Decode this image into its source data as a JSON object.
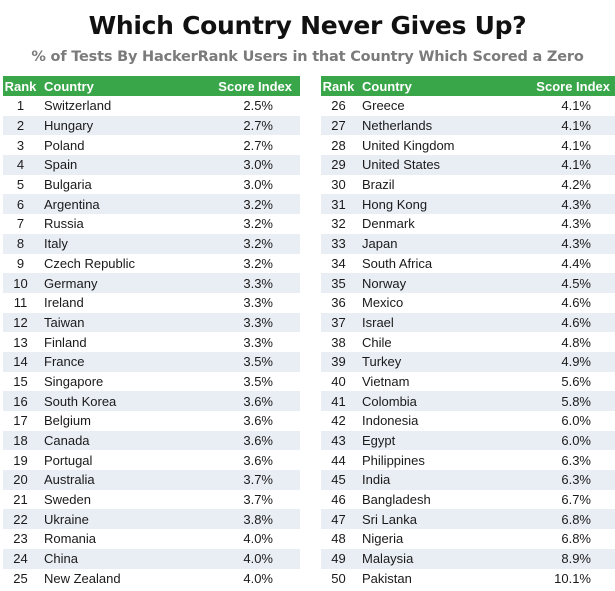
{
  "title": "Which Country Never Gives Up?",
  "subtitle": "% of Tests By HackerRank Users in that Country Which Scored a Zero",
  "columns": {
    "rank": "Rank",
    "country": "Country",
    "score": "Score Index"
  },
  "rows": [
    {
      "rank": "1",
      "country": "Switzerland",
      "score": "2.5%"
    },
    {
      "rank": "2",
      "country": "Hungary",
      "score": "2.7%"
    },
    {
      "rank": "3",
      "country": "Poland",
      "score": "2.7%"
    },
    {
      "rank": "4",
      "country": "Spain",
      "score": "3.0%"
    },
    {
      "rank": "5",
      "country": "Bulgaria",
      "score": "3.0%"
    },
    {
      "rank": "6",
      "country": "Argentina",
      "score": "3.2%"
    },
    {
      "rank": "7",
      "country": "Russia",
      "score": "3.2%"
    },
    {
      "rank": "8",
      "country": "Italy",
      "score": "3.2%"
    },
    {
      "rank": "9",
      "country": "Czech Republic",
      "score": "3.2%"
    },
    {
      "rank": "10",
      "country": "Germany",
      "score": "3.3%"
    },
    {
      "rank": "11",
      "country": "Ireland",
      "score": "3.3%"
    },
    {
      "rank": "12",
      "country": "Taiwan",
      "score": "3.3%"
    },
    {
      "rank": "13",
      "country": "Finland",
      "score": "3.3%"
    },
    {
      "rank": "14",
      "country": "France",
      "score": "3.5%"
    },
    {
      "rank": "15",
      "country": "Singapore",
      "score": "3.5%"
    },
    {
      "rank": "16",
      "country": "South Korea",
      "score": "3.6%"
    },
    {
      "rank": "17",
      "country": "Belgium",
      "score": "3.6%"
    },
    {
      "rank": "18",
      "country": "Canada",
      "score": "3.6%"
    },
    {
      "rank": "19",
      "country": "Portugal",
      "score": "3.6%"
    },
    {
      "rank": "20",
      "country": "Australia",
      "score": "3.7%"
    },
    {
      "rank": "21",
      "country": "Sweden",
      "score": "3.7%"
    },
    {
      "rank": "22",
      "country": "Ukraine",
      "score": "3.8%"
    },
    {
      "rank": "23",
      "country": "Romania",
      "score": "4.0%"
    },
    {
      "rank": "24",
      "country": "China",
      "score": "4.0%"
    },
    {
      "rank": "25",
      "country": "New Zealand",
      "score": "4.0%"
    },
    {
      "rank": "26",
      "country": "Greece",
      "score": "4.1%"
    },
    {
      "rank": "27",
      "country": "Netherlands",
      "score": "4.1%"
    },
    {
      "rank": "28",
      "country": "United Kingdom",
      "score": "4.1%"
    },
    {
      "rank": "29",
      "country": "United States",
      "score": "4.1%"
    },
    {
      "rank": "30",
      "country": "Brazil",
      "score": "4.2%"
    },
    {
      "rank": "31",
      "country": "Hong Kong",
      "score": "4.3%"
    },
    {
      "rank": "32",
      "country": "Denmark",
      "score": "4.3%"
    },
    {
      "rank": "33",
      "country": "Japan",
      "score": "4.3%"
    },
    {
      "rank": "34",
      "country": "South Africa",
      "score": "4.4%"
    },
    {
      "rank": "35",
      "country": "Norway",
      "score": "4.5%"
    },
    {
      "rank": "36",
      "country": "Mexico",
      "score": "4.6%"
    },
    {
      "rank": "37",
      "country": "Israel",
      "score": "4.6%"
    },
    {
      "rank": "38",
      "country": "Chile",
      "score": "4.8%"
    },
    {
      "rank": "39",
      "country": "Turkey",
      "score": "4.9%"
    },
    {
      "rank": "40",
      "country": "Vietnam",
      "score": "5.6%"
    },
    {
      "rank": "41",
      "country": "Colombia",
      "score": "5.8%"
    },
    {
      "rank": "42",
      "country": "Indonesia",
      "score": "6.0%"
    },
    {
      "rank": "43",
      "country": "Egypt",
      "score": "6.0%"
    },
    {
      "rank": "44",
      "country": "Philippines",
      "score": "6.3%"
    },
    {
      "rank": "45",
      "country": "India",
      "score": "6.3%"
    },
    {
      "rank": "46",
      "country": "Bangladesh",
      "score": "6.7%"
    },
    {
      "rank": "47",
      "country": "Sri Lanka",
      "score": "6.8%"
    },
    {
      "rank": "48",
      "country": "Nigeria",
      "score": "6.8%"
    },
    {
      "rank": "49",
      "country": "Malaysia",
      "score": "8.9%"
    },
    {
      "rank": "50",
      "country": "Pakistan",
      "score": "10.1%"
    }
  ],
  "colors": {
    "header_bg": "#3aa64a",
    "stripe": "#e9eef5",
    "subtitle": "#7b7b7b"
  }
}
